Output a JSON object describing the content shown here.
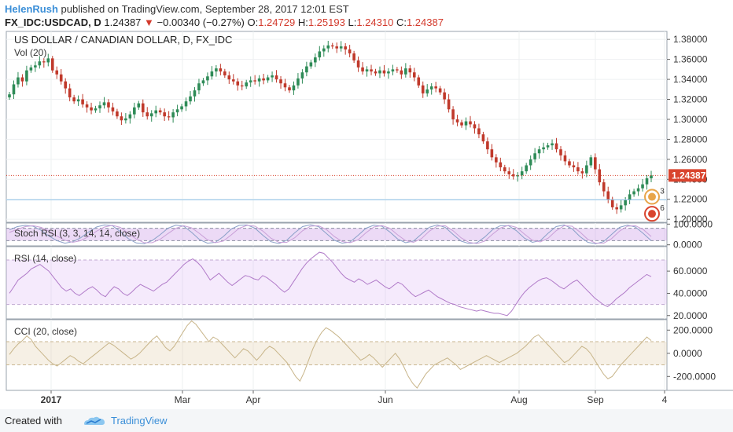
{
  "header": {
    "author": "HelenRush",
    "published": "published on TradingView.com, September 28, 2017 12:01 EST",
    "symbol": "FX_IDC:USDCAD, D",
    "last": "1.24387",
    "change_arrow": "▼",
    "change": "−0.00340 (−0.27%)",
    "o_label": "O:",
    "o_value": "1.24729",
    "h_label": "H:",
    "h_value": "1.25193",
    "l_label": "L:",
    "l_value": "1.24310",
    "c_label": "C:",
    "c_value": "1.24387"
  },
  "footer": {
    "created": "Created with",
    "brand": "TradingView",
    "logo_icon": "tradingview-cloud-icon"
  },
  "colors": {
    "up": "#2e8b57",
    "down": "#c0392b",
    "price_label": "#d9442e",
    "rsi": "#b07ac8",
    "stoch_k": "#8aa0c8",
    "stoch_d": "#c9a0d8",
    "cci": "#c8b58a"
  },
  "chart_data": [
    {
      "type": "candlestick",
      "title": "US DOLLAR / CANADIAN DOLLAR, D, FX_IDC",
      "subtitle": "Vol (20)",
      "x_ticks": [
        "2017",
        "Mar",
        "Apr",
        "Jun",
        "Aug",
        "Sep",
        "4"
      ],
      "y_ticks": [
        "1.38000",
        "1.36000",
        "1.34000",
        "1.32000",
        "1.30000",
        "1.28000",
        "1.26000",
        "1.24000",
        "1.22000",
        "1.20000"
      ],
      "ylim": [
        1.197,
        1.388
      ],
      "last_price_label": "1.24387",
      "event_badges": [
        "3",
        "6"
      ],
      "close_series": [
        1.325,
        1.335,
        1.342,
        1.338,
        1.349,
        1.352,
        1.354,
        1.358,
        1.357,
        1.361,
        1.349,
        1.345,
        1.338,
        1.331,
        1.322,
        1.318,
        1.32,
        1.315,
        1.312,
        1.309,
        1.311,
        1.314,
        1.317,
        1.312,
        1.308,
        1.303,
        1.299,
        1.301,
        1.305,
        1.312,
        1.316,
        1.307,
        1.303,
        1.306,
        1.309,
        1.307,
        1.303,
        1.302,
        1.307,
        1.31,
        1.313,
        1.318,
        1.323,
        1.329,
        1.336,
        1.339,
        1.343,
        1.348,
        1.351,
        1.348,
        1.344,
        1.34,
        1.338,
        1.334,
        1.333,
        1.337,
        1.339,
        1.338,
        1.341,
        1.339,
        1.342,
        1.344,
        1.34,
        1.336,
        1.332,
        1.329,
        1.334,
        1.341,
        1.347,
        1.353,
        1.357,
        1.362,
        1.368,
        1.371,
        1.374,
        1.373,
        1.371,
        1.373,
        1.37,
        1.366,
        1.359,
        1.352,
        1.348,
        1.35,
        1.348,
        1.346,
        1.349,
        1.346,
        1.348,
        1.35,
        1.349,
        1.345,
        1.351,
        1.347,
        1.342,
        1.334,
        1.326,
        1.33,
        1.333,
        1.331,
        1.327,
        1.32,
        1.31,
        1.3,
        1.297,
        1.294,
        1.298,
        1.295,
        1.291,
        1.285,
        1.278,
        1.27,
        1.262,
        1.257,
        1.252,
        1.248,
        1.245,
        1.243,
        1.244,
        1.248,
        1.254,
        1.26,
        1.266,
        1.27,
        1.272,
        1.274,
        1.276,
        1.27,
        1.264,
        1.258,
        1.254,
        1.252,
        1.248,
        1.246,
        1.254,
        1.262,
        1.25,
        1.237,
        1.228,
        1.22,
        1.212,
        1.21,
        1.214,
        1.219,
        1.225,
        1.228,
        1.231,
        1.235,
        1.241,
        1.2439
      ]
    },
    {
      "type": "line",
      "title": "Stoch RSI (3, 3, 14, 14, close)",
      "y_ticks": [
        "100.0000",
        "0.0000"
      ],
      "ylim": [
        -5,
        105
      ],
      "band": [
        20,
        80
      ],
      "series": [
        {
          "values": [
            72,
            88,
            94,
            90,
            70,
            42,
            20,
            8,
            15,
            34,
            62,
            86,
            96,
            92,
            64,
            30,
            9,
            5,
            20,
            48,
            80,
            95,
            90,
            60,
            25,
            8,
            12,
            40,
            76,
            94,
            96,
            80,
            45,
            15,
            6,
            22,
            58,
            88,
            97,
            88,
            55,
            22,
            8,
            14,
            46,
            80,
            95,
            90,
            62,
            28,
            10,
            18,
            52,
            85,
            96,
            84,
            50,
            18,
            6,
            10,
            38,
            74,
            93,
            92,
            68,
            32,
            12,
            20,
            56,
            88,
            96,
            78,
            40,
            12,
            5,
            16,
            50,
            84,
            95,
            86,
            55,
            20
          ]
        },
        {
          "values": [
            60,
            75,
            88,
            92,
            84,
            66,
            42,
            22,
            12,
            20,
            40,
            66,
            86,
            94,
            84,
            56,
            28,
            10,
            10,
            26,
            54,
            80,
            92,
            82,
            54,
            24,
            10,
            18,
            48,
            80,
            94,
            90,
            66,
            32,
            12,
            12,
            34,
            68,
            90,
            92,
            74,
            40,
            16,
            10,
            24,
            58,
            86,
            93,
            80,
            48,
            20,
            12,
            30,
            66,
            90,
            92,
            68,
            34,
            12,
            6,
            18,
            52,
            82,
            94,
            84,
            52,
            22,
            14,
            32,
            68,
            92,
            90,
            62,
            26,
            8,
            8,
            30,
            66,
            90,
            92,
            74,
            40
          ]
        }
      ]
    },
    {
      "type": "line",
      "title": "RSI (14, close)",
      "y_ticks": [
        "60.0000",
        "40.0000",
        "20.0000"
      ],
      "ylim": [
        17,
        82
      ],
      "band": [
        30,
        70
      ],
      "values": [
        40,
        46,
        52,
        55,
        58,
        62,
        64,
        66,
        63,
        60,
        55,
        50,
        45,
        42,
        44,
        40,
        38,
        41,
        44,
        46,
        43,
        39,
        37,
        42,
        46,
        44,
        40,
        38,
        41,
        45,
        48,
        46,
        44,
        42,
        45,
        48,
        50,
        54,
        58,
        62,
        66,
        69,
        71,
        68,
        64,
        58,
        52,
        55,
        58,
        54,
        50,
        47,
        50,
        53,
        56,
        55,
        53,
        52,
        56,
        54,
        51,
        48,
        44,
        41,
        44,
        50,
        56,
        62,
        67,
        71,
        74,
        77,
        76,
        72,
        68,
        63,
        58,
        54,
        52,
        50,
        53,
        51,
        48,
        50,
        52,
        49,
        46,
        44,
        47,
        50,
        48,
        44,
        40,
        37,
        39,
        41,
        43,
        40,
        37,
        35,
        33,
        31,
        30,
        28,
        27,
        26,
        25,
        24,
        25,
        24,
        23,
        22,
        22,
        21,
        20,
        24,
        30,
        36,
        41,
        45,
        48,
        51,
        53,
        54,
        52,
        49,
        46,
        44,
        47,
        50,
        52,
        48,
        44,
        40,
        36,
        33,
        30,
        28,
        31,
        35,
        38,
        41,
        45,
        48,
        51,
        54,
        57,
        55
      ]
    },
    {
      "type": "line",
      "title": "CCI (20, close)",
      "y_ticks": [
        "200.0000",
        "0.0000",
        "-200.0000"
      ],
      "ylim": [
        -320,
        290
      ],
      "band": [
        -100,
        100
      ],
      "values": [
        -10,
        40,
        80,
        110,
        150,
        120,
        60,
        20,
        -20,
        -60,
        -90,
        -110,
        -80,
        -50,
        -20,
        -40,
        -70,
        -90,
        -60,
        -30,
        0,
        30,
        60,
        90,
        70,
        40,
        10,
        -20,
        -50,
        -30,
        0,
        40,
        80,
        120,
        150,
        100,
        50,
        20,
        60,
        120,
        180,
        240,
        280,
        250,
        200,
        150,
        100,
        140,
        120,
        80,
        40,
        0,
        -40,
        0,
        40,
        20,
        -20,
        -60,
        -20,
        30,
        60,
        40,
        0,
        -40,
        -80,
        -140,
        -200,
        -240,
        -160,
        -60,
        40,
        120,
        180,
        220,
        200,
        170,
        140,
        100,
        60,
        20,
        -20,
        -60,
        -40,
        -10,
        -40,
        -80,
        -120,
        -80,
        -40,
        0,
        -50,
        -120,
        -200,
        -260,
        -300,
        -240,
        -180,
        -140,
        -100,
        -80,
        -60,
        -40,
        -70,
        -100,
        -140,
        -120,
        -100,
        -80,
        -60,
        -40,
        -20,
        -40,
        -60,
        -80,
        -60,
        -40,
        -20,
        0,
        30,
        60,
        100,
        140,
        160,
        120,
        80,
        40,
        0,
        -40,
        -80,
        -60,
        -20,
        20,
        60,
        40,
        0,
        -60,
        -120,
        -180,
        -220,
        -200,
        -150,
        -100,
        -60,
        -20,
        20,
        60,
        100,
        140,
        110
      ]
    }
  ]
}
